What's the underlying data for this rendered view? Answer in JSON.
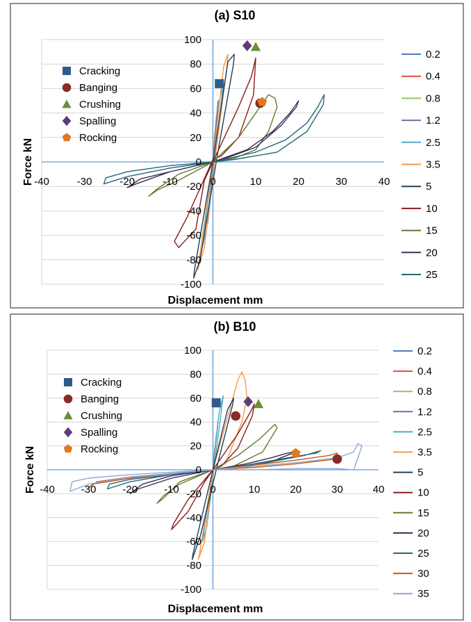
{
  "chart_data": [
    {
      "type": "line",
      "title": "(a) S10",
      "xlabel": "Displacement mm",
      "ylabel": "Force kN",
      "xlim": [
        -40,
        40
      ],
      "ylim": [
        -100,
        100
      ],
      "xticks": [
        "-40",
        "-30",
        "-20",
        "-10",
        "0",
        "10",
        "20",
        "30",
        "40"
      ],
      "yticks": [
        "100",
        "80",
        "60",
        "40",
        "20",
        "0",
        "-20",
        "-40",
        "-60",
        "-80",
        "-100"
      ],
      "grid": true,
      "legend_position": "right",
      "series": [
        {
          "name": "0.2",
          "color": "#4a7ebb",
          "x": [
            0,
            0.2,
            0,
            -0.2,
            0
          ],
          "y": [
            0,
            12,
            0,
            -12,
            0
          ]
        },
        {
          "name": "0.4",
          "color": "#e04a3f",
          "x": [
            0,
            0.4,
            0,
            -0.4,
            0
          ],
          "y": [
            0,
            22,
            0,
            -22,
            0
          ]
        },
        {
          "name": "0.8",
          "color": "#98c35c",
          "x": [
            0,
            0.8,
            0,
            -0.8,
            0
          ],
          "y": [
            0,
            38,
            0,
            -38,
            0
          ]
        },
        {
          "name": "1.2",
          "color": "#8064a2",
          "x": [
            0,
            1.2,
            0.2,
            -1.2,
            0
          ],
          "y": [
            0,
            50,
            0,
            -50,
            0
          ]
        },
        {
          "name": "2.5",
          "color": "#4bacc6",
          "x": [
            0,
            1.5,
            2.5,
            0.3,
            -1.5,
            -2.5,
            0
          ],
          "y": [
            0,
            50,
            64,
            2,
            -55,
            -70,
            0
          ]
        },
        {
          "name": "3.5",
          "color": "#f79646",
          "x": [
            0,
            2.5,
            3.5,
            3.3,
            0.5,
            -2,
            -3.5,
            -3.3,
            0
          ],
          "y": [
            0,
            78,
            88,
            78,
            3,
            -70,
            -88,
            -82,
            0
          ]
        },
        {
          "name": "5",
          "color": "#1f3e5c",
          "x": [
            0,
            3.5,
            5,
            4.8,
            1,
            -3,
            -4.5,
            -4.3,
            0
          ],
          "y": [
            0,
            82,
            88,
            80,
            5,
            -80,
            -95,
            -88,
            0
          ]
        },
        {
          "name": "10",
          "color": "#8b1a1a",
          "x": [
            0,
            6,
            9,
            10,
            9.5,
            6,
            2,
            0,
            -6,
            -9,
            -8,
            -4,
            -2,
            0
          ],
          "y": [
            0,
            45,
            70,
            85,
            55,
            20,
            5,
            2,
            -45,
            -65,
            -70,
            -55,
            -15,
            0
          ]
        },
        {
          "name": "15",
          "color": "#5e7a2e",
          "x": [
            0,
            6,
            10,
            13,
            14.5,
            15,
            13,
            10,
            5,
            0,
            -8,
            -13,
            -15,
            -13,
            -8,
            0
          ],
          "y": [
            0,
            20,
            40,
            55,
            52,
            45,
            25,
            10,
            3,
            0,
            -15,
            -23,
            -28,
            -22,
            -10,
            0
          ]
        },
        {
          "name": "20",
          "color": "#3d2a57",
          "x": [
            0,
            8,
            14,
            18,
            20,
            19.5,
            16,
            10,
            3,
            0,
            -10,
            -17,
            -20,
            -18,
            -10,
            0
          ],
          "y": [
            0,
            10,
            25,
            40,
            50,
            45,
            30,
            12,
            3,
            0,
            -8,
            -14,
            -21,
            -18,
            -8,
            0
          ]
        },
        {
          "name": "25",
          "color": "#256778",
          "x": [
            0,
            10,
            17,
            22,
            24.5,
            26,
            25.8,
            22,
            15,
            5,
            0,
            -10,
            -20,
            -25,
            -25.5,
            -20,
            -10,
            0
          ],
          "y": [
            0,
            8,
            18,
            32,
            45,
            55,
            47,
            25,
            8,
            2,
            0,
            -3,
            -8,
            -13,
            -18,
            -12,
            -5,
            0
          ]
        }
      ],
      "markers": [
        {
          "name": "Cracking",
          "shape": "square",
          "color": "#2f5b8c",
          "x": 1.5,
          "y": 64
        },
        {
          "name": "Banging",
          "shape": "circle",
          "color": "#8b2a2a",
          "x": 11,
          "y": 48
        },
        {
          "name": "Crushing",
          "shape": "triangle",
          "color": "#6b8f3a",
          "x": 10,
          "y": 94
        },
        {
          "name": "Spalling",
          "shape": "diamond",
          "color": "#5c3d7a",
          "x": 8,
          "y": 95
        },
        {
          "name": "Rocking",
          "shape": "pentagon",
          "color": "#e07a20",
          "x": 11.5,
          "y": 49
        }
      ]
    },
    {
      "type": "line",
      "title": "(b) B10",
      "xlabel": "Displacement mm",
      "ylabel": "Force kN",
      "xlim": [
        -40,
        40
      ],
      "ylim": [
        -100,
        100
      ],
      "xticks": [
        "-40",
        "-30",
        "-20",
        "-10",
        "0",
        "10",
        "20",
        "30",
        "40"
      ],
      "yticks": [
        "100",
        "80",
        "60",
        "40",
        "20",
        "0",
        "-20",
        "-40",
        "-60",
        "-80",
        "-100"
      ],
      "grid": true,
      "legend_position": "right",
      "series": [
        {
          "name": "0.2",
          "color": "#4a7ebb",
          "x": [
            0,
            0.2,
            0,
            -0.2,
            0
          ],
          "y": [
            0,
            10,
            0,
            -10,
            0
          ]
        },
        {
          "name": "0.4",
          "color": "#e04a3f",
          "x": [
            0,
            0.4,
            0,
            -0.4,
            0
          ],
          "y": [
            0,
            18,
            0,
            -18,
            0
          ]
        },
        {
          "name": "0.8",
          "color": "#98c35c",
          "x": [
            0,
            0.8,
            0,
            -0.8,
            0
          ],
          "y": [
            0,
            30,
            0,
            -30,
            0
          ]
        },
        {
          "name": "1.2",
          "color": "#8064a2",
          "x": [
            0,
            1.2,
            0,
            -1.2,
            0
          ],
          "y": [
            0,
            40,
            0,
            -40,
            0
          ]
        },
        {
          "name": "2.5",
          "color": "#4bacc6",
          "x": [
            0,
            1.5,
            2.5,
            0.3,
            -1.5,
            -2.5,
            0
          ],
          "y": [
            0,
            48,
            62,
            2,
            -48,
            -60,
            0
          ]
        },
        {
          "name": "3.5",
          "color": "#f79646",
          "x": [
            0,
            4,
            6,
            7,
            7.8,
            8.2,
            7,
            3,
            0,
            -2,
            -3.5,
            -3.2,
            0
          ],
          "y": [
            0,
            50,
            75,
            82,
            75,
            60,
            40,
            5,
            0,
            -60,
            -75,
            -70,
            0
          ]
        },
        {
          "name": "5",
          "color": "#1f3e5c",
          "x": [
            0,
            3.5,
            5,
            4.8,
            1,
            -3,
            -5,
            -4.8,
            0
          ],
          "y": [
            0,
            50,
            60,
            55,
            3,
            -55,
            -75,
            -70,
            0
          ]
        },
        {
          "name": "10",
          "color": "#8b1a1a",
          "x": [
            0,
            6,
            9,
            10,
            9.5,
            6,
            2,
            0,
            -6,
            -9.5,
            -10,
            -6,
            -2,
            0
          ],
          "y": [
            0,
            30,
            48,
            55,
            45,
            18,
            3,
            0,
            -25,
            -45,
            -50,
            -35,
            -10,
            0
          ]
        },
        {
          "name": "15",
          "color": "#5e7a2e",
          "x": [
            0,
            6,
            11,
            15,
            15.5,
            12,
            5,
            0,
            -8,
            -12,
            -13.5,
            -12,
            -8,
            0
          ],
          "y": [
            0,
            12,
            25,
            38,
            35,
            15,
            3,
            0,
            -12,
            -22,
            -28,
            -24,
            -10,
            0
          ]
        },
        {
          "name": "20",
          "color": "#3d2a57",
          "x": [
            0,
            8,
            14,
            18,
            20,
            15,
            5,
            0,
            -10,
            -17,
            -20,
            -18,
            -10,
            0
          ],
          "y": [
            0,
            5,
            10,
            14,
            15,
            8,
            2,
            0,
            -5,
            -12,
            -20,
            -16,
            -7,
            0
          ]
        },
        {
          "name": "25",
          "color": "#256778",
          "x": [
            0,
            10,
            18,
            25,
            26,
            22,
            10,
            0,
            -10,
            -20,
            -25,
            -25.5,
            -20,
            -10,
            0
          ],
          "y": [
            0,
            5,
            10,
            14,
            16,
            12,
            4,
            0,
            -4,
            -8,
            -12,
            -16,
            -10,
            -4,
            0
          ]
        },
        {
          "name": "30",
          "color": "#c55a11",
          "x": [
            0,
            10,
            20,
            28,
            30,
            29.5,
            20,
            10,
            0,
            -10,
            -20,
            -28,
            -30,
            -29,
            -20,
            -10,
            0
          ],
          "y": [
            0,
            4,
            8,
            12,
            14,
            9,
            5,
            2,
            0,
            -3,
            -6,
            -10,
            -15,
            -12,
            -7,
            -3,
            0
          ]
        },
        {
          "name": "35",
          "color": "#8ea9db",
          "x": [
            0,
            10,
            20,
            30,
            34,
            35,
            36,
            34,
            30,
            20,
            10,
            0,
            -10,
            -20,
            -30,
            -34,
            -34.5,
            -30,
            -20,
            -10,
            0
          ],
          "y": [
            0,
            3,
            6,
            10,
            15,
            22,
            20,
            0,
            1,
            1,
            0,
            0,
            -2,
            -4,
            -7,
            -10,
            -18,
            -12,
            -6,
            -3,
            0
          ]
        }
      ],
      "markers": [
        {
          "name": "Cracking",
          "shape": "square",
          "color": "#2f5b8c",
          "x": 0.8,
          "y": 56
        },
        {
          "name": "Banging",
          "shape": "circle",
          "color": "#8b2a2a",
          "x": 5.5,
          "y": 45
        },
        {
          "name": "Crushing",
          "shape": "triangle",
          "color": "#6b8f3a",
          "x": 11,
          "y": 55
        },
        {
          "name": "Spalling",
          "shape": "diamond",
          "color": "#5c3d7a",
          "x": 8.5,
          "y": 57
        },
        {
          "name": "Rocking",
          "shape": "pentagon",
          "color": "#e07a20",
          "x": 20,
          "y": 14
        },
        {
          "name": "Banging",
          "shape": "circle",
          "color": "#8b2a2a",
          "x": 30,
          "y": 9
        }
      ]
    }
  ]
}
